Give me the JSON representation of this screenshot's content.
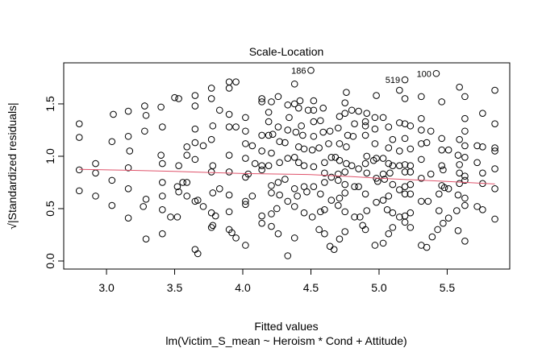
{
  "chart_data": {
    "type": "scatter",
    "title": "Scale-Location",
    "xlabel": "Fitted values",
    "sublabel": "lm(Victim_S_mean ~ Heroism * Cond + Attitude)",
    "ylabel": "√|Standardized residuals|",
    "xlim": [
      2.686,
      5.959
    ],
    "ylim": [
      -0.077,
      1.892
    ],
    "xticks": [
      "3.0",
      "3.5",
      "4.0",
      "4.5",
      "5.0",
      "5.5"
    ],
    "yticks": [
      "0.0",
      "0.5",
      "1.0",
      "1.5"
    ],
    "grid": false,
    "smooth_color": "#DF536B",
    "point_labels": [
      {
        "label": "186",
        "x": 4.5,
        "y": 1.82
      },
      {
        "label": "519",
        "x": 5.19,
        "y": 1.73
      },
      {
        "label": "100",
        "x": 5.42,
        "y": 1.79
      }
    ],
    "smooth": [
      [
        2.8,
        0.875
      ],
      [
        3.2,
        0.865
      ],
      [
        3.5,
        0.855
      ],
      [
        4.0,
        0.835
      ],
      [
        4.5,
        0.825
      ],
      [
        4.8,
        0.805
      ],
      [
        5.0,
        0.79
      ],
      [
        5.5,
        0.76
      ],
      [
        5.85,
        0.735
      ]
    ],
    "points": [
      [
        2.8,
        1.31
      ],
      [
        2.8,
        1.18
      ],
      [
        2.8,
        0.87
      ],
      [
        2.8,
        0.67
      ],
      [
        2.92,
        0.93
      ],
      [
        2.92,
        0.84
      ],
      [
        2.92,
        0.62
      ],
      [
        3.05,
        1.4
      ],
      [
        3.04,
        1.14
      ],
      [
        3.04,
        0.77
      ],
      [
        3.04,
        0.53
      ],
      [
        3.16,
        1.43
      ],
      [
        3.16,
        1.19
      ],
      [
        3.17,
        1.05
      ],
      [
        3.16,
        0.89
      ],
      [
        3.16,
        0.69
      ],
      [
        3.16,
        0.41
      ],
      [
        3.28,
        1.48
      ],
      [
        3.29,
        1.39
      ],
      [
        3.28,
        1.24
      ],
      [
        3.29,
        0.59
      ],
      [
        3.27,
        0.52
      ],
      [
        3.29,
        0.21
      ],
      [
        3.4,
        1.47
      ],
      [
        3.41,
        1.28
      ],
      [
        3.4,
        1.01
      ],
      [
        3.41,
        0.93
      ],
      [
        3.41,
        0.75
      ],
      [
        3.41,
        0.62
      ],
      [
        3.41,
        0.49
      ],
      [
        3.41,
        0.26
      ],
      [
        3.47,
        0.42
      ],
      [
        3.5,
        1.56
      ],
      [
        3.53,
        1.55
      ],
      [
        3.53,
        0.91
      ],
      [
        3.52,
        0.71
      ],
      [
        3.53,
        0.66
      ],
      [
        3.56,
        0.75
      ],
      [
        3.59,
        0.75
      ],
      [
        3.59,
        1.09
      ],
      [
        3.59,
        1.01
      ],
      [
        3.59,
        0.62
      ],
      [
        3.52,
        0.42
      ],
      [
        3.65,
        1.58
      ],
      [
        3.65,
        1.48
      ],
      [
        3.65,
        1.26
      ],
      [
        3.65,
        1.13
      ],
      [
        3.65,
        0.97
      ],
      [
        3.65,
        0.57
      ],
      [
        3.67,
        0.58
      ],
      [
        3.71,
        1.1
      ],
      [
        3.71,
        0.52
      ],
      [
        3.65,
        0.11
      ],
      [
        3.67,
        0.07
      ],
      [
        3.77,
        1.65
      ],
      [
        3.77,
        1.55
      ],
      [
        3.78,
        1.29
      ],
      [
        3.77,
        1.16
      ],
      [
        3.78,
        0.91
      ],
      [
        3.77,
        0.85
      ],
      [
        3.78,
        0.65
      ],
      [
        3.83,
        0.69
      ],
      [
        3.77,
        0.46
      ],
      [
        3.8,
        0.43
      ],
      [
        3.78,
        0.34
      ],
      [
        3.77,
        0.32
      ],
      [
        3.83,
        1.44
      ],
      [
        3.9,
        1.71
      ],
      [
        3.9,
        1.65
      ],
      [
        3.95,
        1.71
      ],
      [
        3.9,
        1.4
      ],
      [
        3.9,
        1.28
      ],
      [
        3.95,
        1.28
      ],
      [
        3.9,
        1.01
      ],
      [
        3.9,
        0.85
      ],
      [
        3.9,
        0.63
      ],
      [
        3.9,
        0.47
      ],
      [
        3.9,
        0.3
      ],
      [
        3.92,
        0.27
      ],
      [
        3.95,
        0.22
      ],
      [
        4.02,
        1.37
      ],
      [
        4.02,
        1.24
      ],
      [
        4.02,
        1.12
      ],
      [
        4.07,
        1.1
      ],
      [
        4.02,
        0.98
      ],
      [
        4.02,
        0.8
      ],
      [
        4.04,
        0.83
      ],
      [
        4.09,
        0.93
      ],
      [
        4.07,
        0.62
      ],
      [
        4.02,
        0.57
      ],
      [
        4.02,
        0.54
      ],
      [
        4.02,
        0.15
      ],
      [
        4.14,
        1.55
      ],
      [
        4.14,
        1.52
      ],
      [
        4.14,
        1.2
      ],
      [
        4.14,
        1.05
      ],
      [
        4.14,
        0.91
      ],
      [
        4.14,
        0.87
      ],
      [
        4.14,
        0.43
      ],
      [
        4.14,
        0.36
      ],
      [
        4.19,
        1.42
      ],
      [
        4.19,
        1.33
      ],
      [
        4.19,
        1.2
      ],
      [
        4.19,
        0.91
      ],
      [
        4.21,
        1.52
      ],
      [
        4.21,
        1.03
      ],
      [
        4.21,
        0.72
      ],
      [
        4.21,
        0.65
      ],
      [
        4.21,
        0.45
      ],
      [
        4.21,
        0.33
      ],
      [
        4.38,
        1.69
      ],
      [
        4.26,
        1.57
      ],
      [
        4.33,
        1.49
      ],
      [
        4.38,
        1.5
      ],
      [
        4.42,
        1.53
      ],
      [
        4.41,
        1.46
      ],
      [
        4.52,
        1.53
      ],
      [
        4.48,
        1.44
      ],
      [
        4.52,
        1.44
      ],
      [
        4.59,
        1.46
      ],
      [
        4.76,
        1.61
      ],
      [
        4.75,
        1.51
      ],
      [
        4.71,
        1.38
      ],
      [
        4.75,
        1.41
      ],
      [
        4.8,
        1.44
      ],
      [
        4.85,
        1.43
      ],
      [
        4.91,
        1.41
      ],
      [
        4.97,
        1.37
      ],
      [
        5.03,
        1.37
      ],
      [
        4.98,
        1.58
      ],
      [
        5.15,
        1.63
      ],
      [
        5.19,
        1.55
      ],
      [
        5.31,
        1.57
      ],
      [
        5.46,
        1.52
      ],
      [
        5.59,
        1.66
      ],
      [
        5.63,
        1.57
      ],
      [
        5.76,
        1.41
      ],
      [
        5.85,
        1.63
      ],
      [
        5.85,
        1.31
      ],
      [
        5.63,
        1.36
      ],
      [
        5.31,
        1.36
      ],
      [
        5.19,
        1.31
      ],
      [
        5.15,
        1.32
      ],
      [
        5.23,
        1.29
      ],
      [
        5.07,
        1.28
      ],
      [
        4.9,
        1.29
      ],
      [
        4.9,
        1.33
      ],
      [
        4.97,
        1.26
      ],
      [
        4.82,
        1.31
      ],
      [
        4.7,
        1.27
      ],
      [
        4.64,
        1.24
      ],
      [
        4.59,
        1.23
      ],
      [
        4.52,
        1.33
      ],
      [
        4.57,
        1.34
      ],
      [
        4.43,
        1.29
      ],
      [
        4.34,
        1.37
      ],
      [
        4.26,
        1.28
      ],
      [
        4.22,
        1.21
      ],
      [
        4.33,
        1.25
      ],
      [
        4.39,
        1.23
      ],
      [
        4.44,
        1.2
      ],
      [
        4.52,
        1.19
      ],
      [
        4.27,
        1.14
      ],
      [
        4.31,
        1.13
      ],
      [
        4.41,
        1.09
      ],
      [
        4.45,
        1.07
      ],
      [
        4.51,
        1.06
      ],
      [
        4.56,
        1.08
      ],
      [
        4.63,
        1.12
      ],
      [
        4.71,
        1.12
      ],
      [
        4.76,
        1.09
      ],
      [
        4.81,
        1.19
      ],
      [
        4.77,
        1.2
      ],
      [
        4.9,
        1.2
      ],
      [
        4.97,
        1.12
      ],
      [
        5.07,
        1.08
      ],
      [
        5.1,
        1.16
      ],
      [
        5.19,
        1.17
      ],
      [
        5.15,
        1.05
      ],
      [
        5.23,
        1.07
      ],
      [
        5.31,
        1.12
      ],
      [
        5.35,
        1.13
      ],
      [
        5.31,
        1.25
      ],
      [
        5.38,
        1.24
      ],
      [
        5.46,
        1.17
      ],
      [
        5.46,
        1.06
      ],
      [
        5.51,
        1.06
      ],
      [
        5.59,
        1.16
      ],
      [
        5.63,
        1.24
      ],
      [
        5.63,
        1.1
      ],
      [
        5.72,
        1.1
      ],
      [
        5.76,
        1.09
      ],
      [
        5.85,
        1.05
      ],
      [
        4.27,
        0.94
      ],
      [
        4.33,
        0.98
      ],
      [
        4.38,
        0.99
      ],
      [
        4.41,
        0.94
      ],
      [
        4.45,
        0.91
      ],
      [
        4.52,
        0.9
      ],
      [
        4.6,
        0.94
      ],
      [
        4.65,
        0.99
      ],
      [
        4.68,
        0.99
      ],
      [
        4.71,
        0.96
      ],
      [
        4.76,
        0.93
      ],
      [
        4.8,
        0.91
      ],
      [
        4.85,
        0.88
      ],
      [
        4.91,
        1.0
      ],
      [
        4.9,
        0.93
      ],
      [
        4.96,
        0.96
      ],
      [
        4.98,
        0.98
      ],
      [
        5.03,
        0.98
      ],
      [
        5.07,
        0.93
      ],
      [
        5.1,
        0.91
      ],
      [
        5.15,
        0.91
      ],
      [
        5.19,
        0.92
      ],
      [
        5.23,
        0.91
      ],
      [
        5.31,
        0.97
      ],
      [
        5.38,
        0.83
      ],
      [
        5.46,
        0.91
      ],
      [
        5.58,
        1.01
      ],
      [
        5.63,
        0.99
      ],
      [
        5.59,
        0.92
      ],
      [
        5.72,
        0.94
      ],
      [
        5.85,
        0.88
      ],
      [
        5.76,
        0.84
      ],
      [
        4.6,
        0.84
      ],
      [
        4.65,
        0.8
      ],
      [
        4.7,
        0.83
      ],
      [
        4.75,
        0.85
      ],
      [
        4.91,
        0.84
      ],
      [
        4.98,
        0.79
      ],
      [
        5.03,
        0.83
      ],
      [
        5.08,
        0.84
      ],
      [
        5.19,
        0.85
      ],
      [
        5.23,
        0.85
      ],
      [
        5.31,
        0.79
      ],
      [
        5.47,
        0.87
      ],
      [
        5.59,
        0.84
      ],
      [
        5.63,
        0.81
      ],
      [
        5.63,
        0.77
      ],
      [
        4.26,
        0.75
      ],
      [
        4.31,
        0.78
      ],
      [
        4.45,
        0.71
      ],
      [
        4.38,
        0.69
      ],
      [
        4.52,
        0.71
      ],
      [
        4.6,
        0.75
      ],
      [
        4.7,
        0.77
      ],
      [
        4.75,
        0.73
      ],
      [
        4.85,
        0.71
      ],
      [
        4.99,
        0.76
      ],
      [
        5.04,
        0.78
      ],
      [
        5.1,
        0.73
      ],
      [
        5.19,
        0.71
      ],
      [
        5.23,
        0.73
      ],
      [
        5.46,
        0.72
      ],
      [
        5.48,
        0.7
      ],
      [
        5.51,
        0.69
      ],
      [
        5.59,
        0.74
      ],
      [
        5.76,
        0.74
      ],
      [
        5.85,
        0.69
      ],
      [
        4.27,
        0.63
      ],
      [
        4.33,
        0.57
      ],
      [
        4.4,
        0.62
      ],
      [
        4.47,
        0.66
      ],
      [
        4.57,
        0.64
      ],
      [
        4.65,
        0.58
      ],
      [
        4.71,
        0.6
      ],
      [
        4.75,
        0.65
      ],
      [
        4.82,
        0.71
      ],
      [
        4.9,
        0.64
      ],
      [
        4.98,
        0.56
      ],
      [
        5.03,
        0.58
      ],
      [
        5.07,
        0.62
      ],
      [
        5.15,
        0.68
      ],
      [
        5.19,
        0.64
      ],
      [
        5.23,
        0.64
      ],
      [
        5.31,
        0.57
      ],
      [
        5.36,
        0.57
      ],
      [
        5.44,
        0.64
      ],
      [
        5.58,
        0.63
      ],
      [
        5.63,
        0.6
      ],
      [
        5.63,
        0.53
      ],
      [
        5.72,
        0.52
      ],
      [
        5.76,
        0.49
      ],
      [
        4.25,
        0.5
      ],
      [
        4.38,
        0.52
      ],
      [
        4.45,
        0.46
      ],
      [
        4.51,
        0.42
      ],
      [
        4.57,
        0.47
      ],
      [
        4.6,
        0.49
      ],
      [
        4.7,
        0.53
      ],
      [
        4.75,
        0.47
      ],
      [
        4.82,
        0.42
      ],
      [
        4.86,
        0.42
      ],
      [
        4.91,
        0.48
      ],
      [
        5.06,
        0.49
      ],
      [
        5.1,
        0.46
      ],
      [
        5.15,
        0.42
      ],
      [
        5.19,
        0.43
      ],
      [
        5.23,
        0.46
      ],
      [
        5.44,
        0.48
      ],
      [
        5.51,
        0.41
      ],
      [
        5.57,
        0.48
      ],
      [
        5.85,
        0.4
      ],
      [
        4.26,
        0.26
      ],
      [
        4.38,
        0.22
      ],
      [
        4.33,
        0.05
      ],
      [
        4.56,
        0.3
      ],
      [
        4.6,
        0.26
      ],
      [
        4.75,
        0.28
      ],
      [
        4.71,
        0.21
      ],
      [
        4.64,
        0.14
      ],
      [
        4.67,
        0.11
      ],
      [
        4.88,
        0.34
      ],
      [
        4.9,
        0.3
      ],
      [
        4.97,
        0.15
      ],
      [
        5.03,
        0.17
      ],
      [
        5.07,
        0.26
      ],
      [
        5.1,
        0.32
      ],
      [
        5.19,
        0.37
      ],
      [
        5.23,
        0.32
      ],
      [
        5.31,
        0.15
      ],
      [
        5.35,
        0.13
      ],
      [
        5.39,
        0.23
      ],
      [
        5.43,
        0.3
      ],
      [
        5.47,
        0.36
      ],
      [
        5.58,
        0.29
      ],
      [
        5.63,
        0.19
      ],
      [
        5.85,
        1.08
      ],
      [
        4.5,
        1.82
      ],
      [
        5.19,
        1.73
      ],
      [
        5.42,
        1.79
      ]
    ]
  }
}
